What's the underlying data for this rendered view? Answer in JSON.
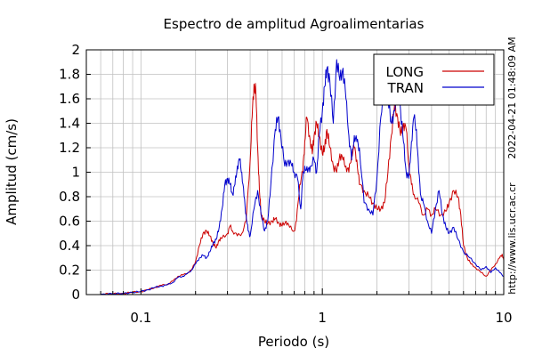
{
  "chart_data": {
    "type": "line",
    "title": "Espectro de amplitud Agroalimentarias",
    "xlabel": "Periodo (s)",
    "ylabel": "Amplitud (cm/s)",
    "xscale": "log",
    "xlim": [
      0.05,
      10
    ],
    "ylim": [
      0,
      2
    ],
    "x_tick_labels": [
      {
        "value": 0.1,
        "label": "0.1"
      },
      {
        "value": 1,
        "label": "1"
      },
      {
        "value": 10,
        "label": "10"
      }
    ],
    "y_ticks": [
      0,
      0.2,
      0.4,
      0.6,
      0.8,
      1,
      1.2,
      1.4,
      1.6,
      1.8,
      2
    ],
    "y_tick_labels": [
      "0",
      "0.2",
      "0.4",
      "0.6",
      "0.8",
      "1",
      "1.2",
      "1.4",
      "1.6",
      "1.8",
      "2"
    ],
    "grid": true,
    "legend_position": "top-right",
    "timestamp": "2022-04-21 01:48:09 AM",
    "url": "http://www.lis.ucr.ac.cr",
    "series": [
      {
        "name": "LONG",
        "color": "#cc0000",
        "points": [
          [
            0.06,
            0.003
          ],
          [
            0.07,
            0.006
          ],
          [
            0.08,
            0.01
          ],
          [
            0.09,
            0.018
          ],
          [
            0.1,
            0.025
          ],
          [
            0.11,
            0.04
          ],
          [
            0.12,
            0.06
          ],
          [
            0.13,
            0.075
          ],
          [
            0.14,
            0.085
          ],
          [
            0.15,
            0.11
          ],
          [
            0.16,
            0.15
          ],
          [
            0.17,
            0.16
          ],
          [
            0.18,
            0.175
          ],
          [
            0.19,
            0.2
          ],
          [
            0.2,
            0.27
          ],
          [
            0.21,
            0.4
          ],
          [
            0.22,
            0.5
          ],
          [
            0.23,
            0.52
          ],
          [
            0.24,
            0.48
          ],
          [
            0.25,
            0.42
          ],
          [
            0.26,
            0.38
          ],
          [
            0.27,
            0.45
          ],
          [
            0.28,
            0.46
          ],
          [
            0.3,
            0.5
          ],
          [
            0.31,
            0.56
          ],
          [
            0.32,
            0.52
          ],
          [
            0.34,
            0.48
          ],
          [
            0.36,
            0.5
          ],
          [
            0.38,
            0.6
          ],
          [
            0.4,
            1.1
          ],
          [
            0.41,
            1.45
          ],
          [
            0.42,
            1.72
          ],
          [
            0.43,
            1.65
          ],
          [
            0.44,
            1.2
          ],
          [
            0.45,
            0.85
          ],
          [
            0.46,
            0.65
          ],
          [
            0.48,
            0.6
          ],
          [
            0.5,
            0.58
          ],
          [
            0.53,
            0.6
          ],
          [
            0.55,
            0.62
          ],
          [
            0.58,
            0.58
          ],
          [
            0.6,
            0.56
          ],
          [
            0.63,
            0.6
          ],
          [
            0.66,
            0.55
          ],
          [
            0.7,
            0.52
          ],
          [
            0.72,
            0.6
          ],
          [
            0.75,
            0.9
          ],
          [
            0.78,
            1.0
          ],
          [
            0.8,
            1.25
          ],
          [
            0.82,
            1.45
          ],
          [
            0.85,
            1.3
          ],
          [
            0.88,
            1.15
          ],
          [
            0.9,
            1.3
          ],
          [
            0.93,
            1.4
          ],
          [
            0.96,
            1.3
          ],
          [
            1.0,
            1.15
          ],
          [
            1.03,
            1.2
          ],
          [
            1.06,
            1.35
          ],
          [
            1.1,
            1.2
          ],
          [
            1.15,
            1.05
          ],
          [
            1.2,
            1.0
          ],
          [
            1.25,
            1.15
          ],
          [
            1.3,
            1.1
          ],
          [
            1.35,
            1.05
          ],
          [
            1.4,
            1.0
          ],
          [
            1.45,
            1.15
          ],
          [
            1.5,
            1.2
          ],
          [
            1.55,
            1.1
          ],
          [
            1.6,
            0.9
          ],
          [
            1.7,
            0.85
          ],
          [
            1.8,
            0.8
          ],
          [
            1.9,
            0.75
          ],
          [
            2.0,
            0.7
          ],
          [
            2.1,
            0.7
          ],
          [
            2.2,
            0.75
          ],
          [
            2.3,
            1.0
          ],
          [
            2.4,
            1.3
          ],
          [
            2.5,
            1.55
          ],
          [
            2.6,
            1.45
          ],
          [
            2.7,
            1.3
          ],
          [
            2.8,
            1.4
          ],
          [
            2.9,
            1.35
          ],
          [
            3.0,
            1.05
          ],
          [
            3.1,
            0.9
          ],
          [
            3.2,
            0.82
          ],
          [
            3.4,
            0.75
          ],
          [
            3.6,
            0.65
          ],
          [
            3.8,
            0.7
          ],
          [
            4.0,
            0.65
          ],
          [
            4.2,
            0.7
          ],
          [
            4.5,
            0.65
          ],
          [
            4.8,
            0.68
          ],
          [
            5.0,
            0.75
          ],
          [
            5.3,
            0.85
          ],
          [
            5.6,
            0.8
          ],
          [
            5.8,
            0.65
          ],
          [
            6.0,
            0.4
          ],
          [
            6.3,
            0.3
          ],
          [
            6.6,
            0.25
          ],
          [
            7.0,
            0.22
          ],
          [
            7.5,
            0.18
          ],
          [
            8.0,
            0.15
          ],
          [
            8.5,
            0.2
          ],
          [
            9.0,
            0.25
          ],
          [
            9.5,
            0.3
          ],
          [
            9.8,
            0.33
          ],
          [
            10.0,
            0.28
          ]
        ]
      },
      {
        "name": "TRAN",
        "color": "#0000cc",
        "points": [
          [
            0.06,
            0.003
          ],
          [
            0.07,
            0.006
          ],
          [
            0.08,
            0.01
          ],
          [
            0.09,
            0.018
          ],
          [
            0.1,
            0.025
          ],
          [
            0.11,
            0.04
          ],
          [
            0.12,
            0.06
          ],
          [
            0.13,
            0.07
          ],
          [
            0.14,
            0.08
          ],
          [
            0.15,
            0.1
          ],
          [
            0.16,
            0.14
          ],
          [
            0.17,
            0.15
          ],
          [
            0.18,
            0.17
          ],
          [
            0.19,
            0.2
          ],
          [
            0.2,
            0.25
          ],
          [
            0.21,
            0.3
          ],
          [
            0.22,
            0.32
          ],
          [
            0.23,
            0.3
          ],
          [
            0.24,
            0.35
          ],
          [
            0.25,
            0.42
          ],
          [
            0.26,
            0.45
          ],
          [
            0.27,
            0.55
          ],
          [
            0.28,
            0.7
          ],
          [
            0.29,
            0.9
          ],
          [
            0.3,
            0.95
          ],
          [
            0.31,
            0.9
          ],
          [
            0.32,
            0.82
          ],
          [
            0.33,
            0.9
          ],
          [
            0.34,
            1.05
          ],
          [
            0.35,
            1.1
          ],
          [
            0.36,
            1.0
          ],
          [
            0.37,
            0.8
          ],
          [
            0.38,
            0.65
          ],
          [
            0.39,
            0.52
          ],
          [
            0.4,
            0.48
          ],
          [
            0.42,
            0.7
          ],
          [
            0.44,
            0.85
          ],
          [
            0.46,
            0.65
          ],
          [
            0.48,
            0.52
          ],
          [
            0.5,
            0.6
          ],
          [
            0.52,
            0.9
          ],
          [
            0.55,
            1.35
          ],
          [
            0.57,
            1.45
          ],
          [
            0.59,
            1.3
          ],
          [
            0.62,
            1.05
          ],
          [
            0.65,
            1.1
          ],
          [
            0.68,
            1.05
          ],
          [
            0.7,
            1.0
          ],
          [
            0.73,
            0.95
          ],
          [
            0.76,
            0.7
          ],
          [
            0.78,
            0.95
          ],
          [
            0.8,
            1.05
          ],
          [
            0.83,
            1.0
          ],
          [
            0.86,
            1.05
          ],
          [
            0.9,
            1.1
          ],
          [
            0.93,
            1.0
          ],
          [
            0.96,
            1.3
          ],
          [
            1.0,
            1.5
          ],
          [
            1.03,
            1.7
          ],
          [
            1.06,
            1.85
          ],
          [
            1.1,
            1.75
          ],
          [
            1.15,
            1.4
          ],
          [
            1.2,
            1.92
          ],
          [
            1.25,
            1.75
          ],
          [
            1.3,
            1.85
          ],
          [
            1.35,
            1.6
          ],
          [
            1.4,
            1.3
          ],
          [
            1.45,
            1.1
          ],
          [
            1.5,
            1.3
          ],
          [
            1.55,
            1.25
          ],
          [
            1.6,
            1.2
          ],
          [
            1.7,
            0.75
          ],
          [
            1.8,
            0.7
          ],
          [
            1.9,
            0.65
          ],
          [
            2.0,
            0.95
          ],
          [
            2.1,
            1.45
          ],
          [
            2.2,
            1.65
          ],
          [
            2.3,
            1.6
          ],
          [
            2.4,
            1.4
          ],
          [
            2.5,
            1.5
          ],
          [
            2.6,
            1.8
          ],
          [
            2.7,
            1.5
          ],
          [
            2.8,
            1.25
          ],
          [
            2.9,
            1.0
          ],
          [
            3.0,
            0.95
          ],
          [
            3.1,
            1.25
          ],
          [
            3.2,
            1.45
          ],
          [
            3.3,
            1.35
          ],
          [
            3.4,
            1.0
          ],
          [
            3.5,
            0.8
          ],
          [
            3.6,
            0.75
          ],
          [
            3.8,
            0.6
          ],
          [
            4.0,
            0.5
          ],
          [
            4.2,
            0.7
          ],
          [
            4.4,
            0.85
          ],
          [
            4.6,
            0.65
          ],
          [
            4.8,
            0.55
          ],
          [
            5.0,
            0.5
          ],
          [
            5.3,
            0.55
          ],
          [
            5.6,
            0.45
          ],
          [
            6.0,
            0.35
          ],
          [
            6.5,
            0.3
          ],
          [
            7.0,
            0.25
          ],
          [
            7.5,
            0.2
          ],
          [
            8.0,
            0.23
          ],
          [
            8.5,
            0.18
          ],
          [
            9.0,
            0.22
          ],
          [
            9.5,
            0.18
          ],
          [
            10.0,
            0.15
          ]
        ]
      }
    ]
  }
}
